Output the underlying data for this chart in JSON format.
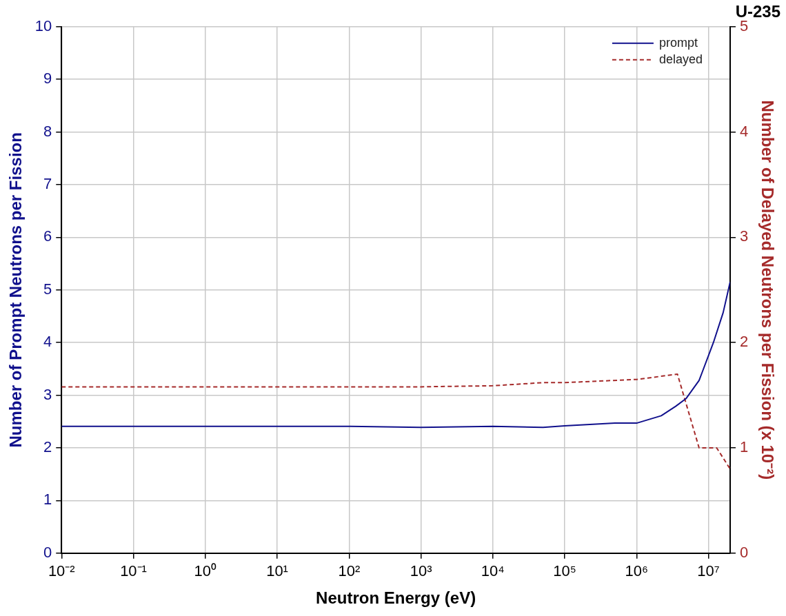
{
  "chart_data": {
    "type": "line",
    "title": "U-235",
    "xlabel": "Neutron Energy (eV)",
    "ylabel": "Number of Prompt Neutrons per Fission",
    "y2label": "Number of Delayed Neutrons per Fission (x 10⁻²)",
    "log": "x",
    "grid": true,
    "legend": "top right",
    "line_style": "solid",
    "marker": "none",
    "xlim": [
      0.01,
      20000000
    ],
    "xticks": [
      {
        "value": 0.01,
        "label": "10⁻²"
      },
      {
        "value": 0.1,
        "label": "10⁻¹"
      },
      {
        "value": 1,
        "label": "10⁰"
      },
      {
        "value": 10,
        "label": "10¹"
      },
      {
        "value": 100,
        "label": "10²"
      },
      {
        "value": 1000,
        "label": "10³"
      },
      {
        "value": 10000,
        "label": "10⁴"
      },
      {
        "value": 100000,
        "label": "10⁵"
      },
      {
        "value": 1000000,
        "label": "10⁶"
      },
      {
        "value": 10000000,
        "label": "10⁷"
      }
    ],
    "ylim": [
      0,
      10
    ],
    "yticks": [
      0,
      1,
      2,
      3,
      4,
      5,
      6,
      7,
      8,
      9,
      10
    ],
    "y2lim": [
      0,
      5
    ],
    "y2ticks": [
      0,
      1,
      2,
      3,
      4,
      5
    ],
    "series": [
      {
        "name": "prompt",
        "color": "#10108c",
        "x": [
          0.01,
          1,
          100,
          1000,
          10000,
          50000,
          100000,
          500000,
          1000000,
          2200000,
          3500000,
          4900000,
          7400000,
          11700000,
          16000000,
          20000000
        ],
        "values": [
          2.41,
          2.41,
          2.41,
          2.39,
          2.41,
          2.39,
          2.42,
          2.47,
          2.47,
          2.61,
          2.79,
          2.94,
          3.28,
          4.0,
          4.57,
          5.15
        ]
      },
      {
        "name": "delayed",
        "color": "#a52a2a",
        "axis": "y2",
        "line_style": "dashed",
        "x": [
          0.01,
          1,
          100,
          1000,
          10000,
          50000,
          100000,
          1000000,
          3700000,
          7400000,
          13000000,
          20000000
        ],
        "values": [
          1.58,
          1.58,
          1.58,
          1.58,
          1.59,
          1.62,
          1.62,
          1.65,
          1.7,
          1.0,
          1.0,
          0.8
        ]
      }
    ]
  }
}
